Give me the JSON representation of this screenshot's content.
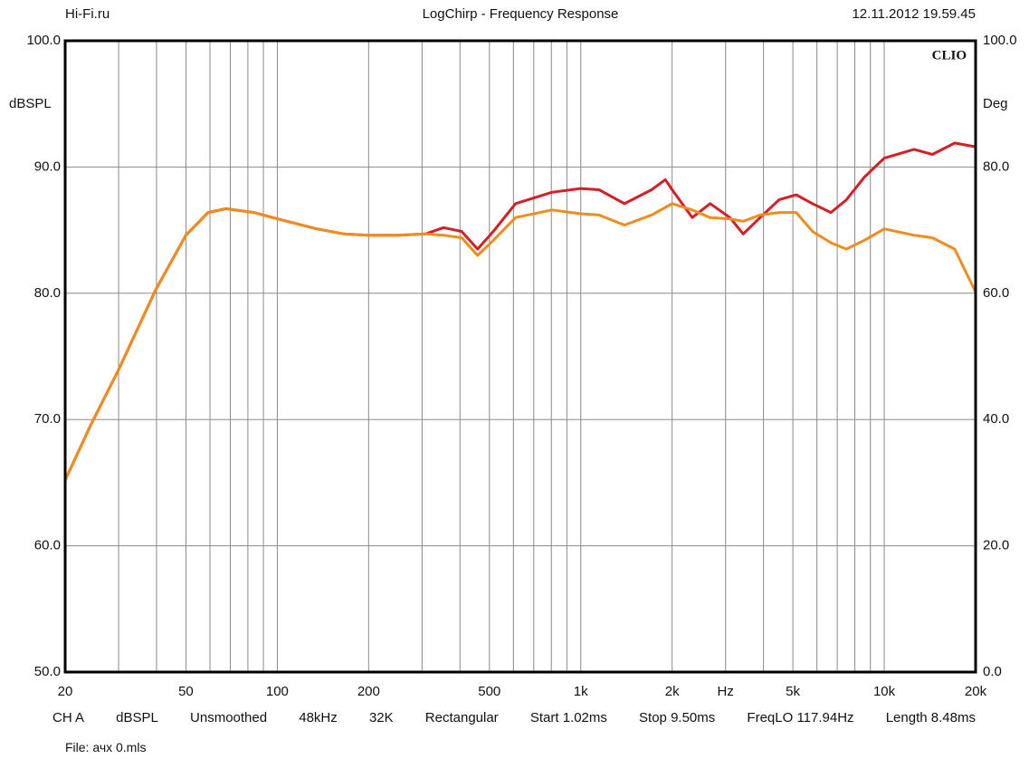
{
  "chart_data": {
    "type": "line",
    "header_left": "Hi-Fi.ru",
    "title": "LogChirp - Frequency Response",
    "header_right": "12.11.2012 19.59.45",
    "ylabel": "dBSPL",
    "y2label": "Deg",
    "brand": "CLIO",
    "x": [
      20,
      24.2,
      29.8,
      39.8,
      50,
      59.2,
      67.9,
      83.6,
      100,
      135,
      166,
      200,
      250,
      308,
      353,
      405,
      457,
      515,
      610,
      803,
      1000,
      1149,
      1393,
      1712,
      1900,
      2000,
      2330,
      2670,
      3100,
      3430,
      3900,
      4500,
      5130,
      5800,
      6670,
      7500,
      8600,
      10000,
      12540,
      14400,
      17070,
      20000
    ],
    "series": [
      {
        "name": "Red",
        "color": "#d41f24",
        "values": [
          65.2,
          69.5,
          73.8,
          80.3,
          84.6,
          86.4,
          86.7,
          86.4,
          85.9,
          85.1,
          84.7,
          84.6,
          84.6,
          84.7,
          85.2,
          84.9,
          83.5,
          84.9,
          87.1,
          88.0,
          88.3,
          88.2,
          87.1,
          88.2,
          89.0,
          88.2,
          86.0,
          87.1,
          86.0,
          84.7,
          86.0,
          87.4,
          87.8,
          87.1,
          86.4,
          87.4,
          89.2,
          90.7,
          91.4,
          91.0,
          91.9,
          91.6
        ]
      },
      {
        "name": "Orange",
        "color": "#f08c1c",
        "values": [
          65.2,
          69.5,
          73.8,
          80.3,
          84.6,
          86.4,
          86.7,
          86.4,
          85.9,
          85.1,
          84.7,
          84.6,
          84.6,
          84.7,
          84.6,
          84.4,
          83.0,
          84.2,
          86.0,
          86.6,
          86.3,
          86.2,
          85.4,
          86.2,
          86.8,
          87.1,
          86.6,
          86.0,
          85.9,
          85.7,
          86.2,
          86.4,
          86.4,
          84.9,
          84.0,
          83.5,
          84.2,
          85.1,
          84.6,
          84.4,
          83.5,
          80.1
        ]
      }
    ],
    "xscale": "log",
    "xlim": [
      20,
      20000
    ],
    "xticks": [
      20,
      50,
      100,
      200,
      500,
      {
        "value": 1000,
        "label": "1k"
      },
      {
        "value": 2000,
        "label": "2k"
      },
      {
        "value": 3000,
        "label": "Hz"
      },
      {
        "value": 5000,
        "label": "5k"
      },
      {
        "value": 10000,
        "label": "10k"
      },
      {
        "value": 20000,
        "label": "20k"
      }
    ],
    "xgrid": [
      30,
      40,
      50,
      60,
      70,
      80,
      90,
      100,
      200,
      300,
      400,
      500,
      600,
      700,
      800,
      900,
      1000,
      2000,
      3000,
      4000,
      5000,
      6000,
      7000,
      8000,
      9000,
      10000
    ],
    "ylim": [
      50,
      100
    ],
    "yticks": [
      {
        "value": 50,
        "label": "50.0"
      },
      {
        "value": 60,
        "label": "60.0"
      },
      {
        "value": 70,
        "label": "70.0"
      },
      {
        "value": 80,
        "label": "80.0"
      },
      {
        "value": 90,
        "label": "90.0"
      },
      {
        "value": 100,
        "label": "100.0"
      }
    ],
    "y2lim": [
      0,
      100
    ],
    "y2ticks": [
      {
        "value": 0,
        "label": "0.0"
      },
      {
        "value": 20,
        "label": "20.0"
      },
      {
        "value": 40,
        "label": "40.0"
      },
      {
        "value": 60,
        "label": "60.0"
      },
      {
        "value": 80,
        "label": "80.0"
      },
      {
        "value": 100,
        "label": "100.0"
      }
    ],
    "grid": true,
    "footer": [
      "CH A",
      "dBSPL",
      "Unsmoothed",
      "48kHz",
      "32K",
      "Rectangular",
      "Start 1.02ms",
      "Stop 9.50ms",
      "FreqLO 117.94Hz",
      "Length 8.48ms"
    ],
    "file": "File: ачх 0.mls"
  }
}
